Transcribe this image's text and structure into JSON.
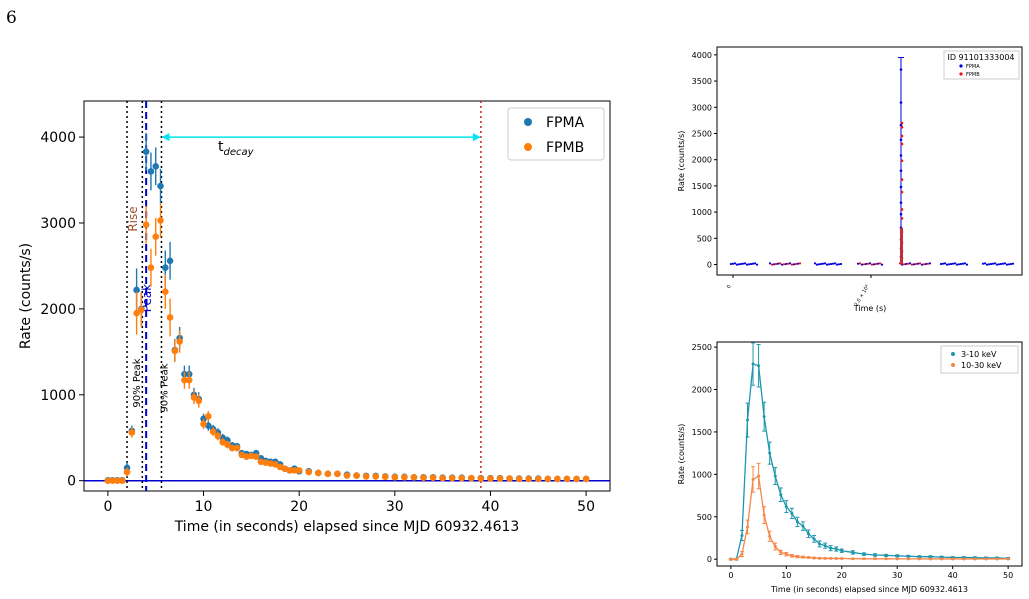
{
  "page": {
    "number": "6"
  },
  "chart_data": [
    {
      "id": "main",
      "type": "scatter",
      "xlabel": "Time (in seconds) elapsed since MJD 60932.4613",
      "ylabel": "Rate (counts/s)",
      "xlim": [
        -2.5,
        52.5
      ],
      "ylim": [
        -120,
        4420
      ],
      "xticks": [
        "0",
        "10",
        "20",
        "30",
        "40",
        "50"
      ],
      "yticks": [
        "0",
        "1000",
        "2000",
        "3000",
        "4000"
      ],
      "grid": false,
      "legend_position": "top-right",
      "series": [
        {
          "name": "FPMA",
          "color": "#1f77b4",
          "x": [
            0,
            0.5,
            1,
            1.5,
            2,
            2.5,
            3,
            3.5,
            4,
            4.5,
            5,
            5.5,
            6,
            6.5,
            7,
            7.5,
            8,
            8.5,
            9,
            9.5,
            10,
            10.5,
            11,
            11.5,
            12,
            12.5,
            13,
            13.5,
            14,
            14.5,
            15,
            15.5,
            16,
            16.5,
            17,
            17.5,
            18,
            18.5,
            19,
            19.5,
            20,
            21,
            22,
            23,
            24,
            25,
            26,
            27,
            28,
            29,
            30,
            31,
            32,
            33,
            34,
            35,
            36,
            37,
            38,
            39,
            40,
            41,
            42,
            43,
            44,
            45,
            46,
            47,
            48,
            49,
            50
          ],
          "y": [
            5,
            5,
            5,
            5,
            150,
            580,
            2220,
            2000,
            3830,
            3600,
            3660,
            3430,
            2480,
            2560,
            1520,
            1660,
            1240,
            1240,
            1000,
            950,
            720,
            640,
            600,
            560,
            500,
            470,
            410,
            400,
            320,
            310,
            300,
            320,
            260,
            230,
            220,
            220,
            190,
            140,
            120,
            140,
            110,
            110,
            90,
            80,
            80,
            70,
            60,
            55,
            55,
            50,
            45,
            45,
            40,
            40,
            40,
            35,
            35,
            35,
            30,
            30,
            30,
            30,
            25,
            25,
            25,
            25,
            20,
            20,
            20,
            20,
            20
          ],
          "err": [
            20,
            20,
            20,
            20,
            60,
            60,
            250,
            200,
            220,
            220,
            220,
            200,
            200,
            220,
            130,
            130,
            100,
            100,
            80,
            80,
            60,
            60,
            50,
            50,
            45,
            45,
            40,
            40,
            35,
            35,
            35,
            35,
            30,
            30,
            30,
            30,
            25,
            25,
            25,
            25,
            20,
            20,
            18,
            18,
            18,
            15,
            15,
            15,
            15,
            15,
            12,
            12,
            12,
            12,
            12,
            10,
            10,
            10,
            10,
            10,
            10,
            10,
            10,
            10,
            10,
            10,
            10,
            10,
            10,
            10,
            10
          ]
        },
        {
          "name": "FPMB",
          "color": "#ff7f0e",
          "x": [
            0,
            0.5,
            1,
            1.5,
            2,
            2.5,
            3,
            3.5,
            4,
            4.5,
            5,
            5.5,
            6,
            6.5,
            7,
            7.5,
            8,
            8.5,
            9,
            9.5,
            10,
            10.5,
            11,
            11.5,
            12,
            12.5,
            13,
            13.5,
            14,
            14.5,
            15,
            15.5,
            16,
            16.5,
            17,
            17.5,
            18,
            18.5,
            19,
            19.5,
            20,
            21,
            22,
            23,
            24,
            25,
            26,
            27,
            28,
            29,
            30,
            31,
            32,
            33,
            34,
            35,
            36,
            37,
            38,
            39,
            40,
            41,
            42,
            43,
            44,
            45,
            46,
            47,
            48,
            49,
            50
          ],
          "y": [
            0,
            0,
            0,
            0,
            100,
            560,
            1950,
            1990,
            2980,
            2480,
            2840,
            3030,
            2200,
            1900,
            1510,
            1620,
            1170,
            1170,
            970,
            930,
            660,
            750,
            570,
            520,
            450,
            420,
            380,
            380,
            300,
            280,
            290,
            280,
            220,
            210,
            200,
            190,
            160,
            140,
            120,
            120,
            120,
            100,
            90,
            80,
            80,
            60,
            60,
            50,
            50,
            45,
            40,
            40,
            40,
            35,
            35,
            30,
            30,
            30,
            30,
            25,
            25,
            25,
            25,
            20,
            20,
            20,
            20,
            20,
            20,
            20,
            20
          ],
          "err": [
            20,
            20,
            20,
            20,
            50,
            60,
            250,
            200,
            220,
            220,
            220,
            200,
            200,
            220,
            130,
            130,
            100,
            100,
            80,
            80,
            60,
            60,
            50,
            50,
            45,
            45,
            40,
            40,
            35,
            35,
            35,
            35,
            30,
            30,
            30,
            30,
            25,
            25,
            25,
            25,
            20,
            20,
            18,
            18,
            18,
            15,
            15,
            15,
            15,
            15,
            12,
            12,
            12,
            12,
            12,
            10,
            10,
            10,
            10,
            10,
            10,
            10,
            10,
            10,
            10,
            10,
            10,
            10,
            10,
            10,
            10
          ]
        }
      ],
      "vlines": [
        {
          "x": 2.0,
          "color": "#000000",
          "style": "dotted",
          "label": "90% Peak"
        },
        {
          "x": 3.6,
          "color": "#000000",
          "style": "dotted",
          "label": ""
        },
        {
          "x": 4.0,
          "color": "#0000cc",
          "style": "dashed",
          "label": "Peak"
        },
        {
          "x": 5.6,
          "color": "#000000",
          "style": "dotted",
          "label": "90% Peak"
        },
        {
          "x": 39.0,
          "color": "#cc2222",
          "style": "dotted",
          "label": ""
        }
      ],
      "hline": {
        "y": 0,
        "color": "#0000cc"
      },
      "rise_label": "Rise",
      "decay_label": "t",
      "decay_subscript": "decay",
      "decay_arrow": [
        5.6,
        39.0
      ],
      "decay_arrow_y": 4000,
      "accent": "#00e5ee"
    },
    {
      "id": "top-right",
      "type": "scatter",
      "xlabel": "Time (s)",
      "ylabel": "Rate (counts/s)",
      "xticks": [
        "0",
        "2.0 × 10⁸"
      ],
      "yticks": [
        "0",
        "500",
        "1000",
        "1500",
        "2000",
        "2500",
        "3000",
        "3500",
        "4000"
      ],
      "ylim": [
        -200,
        4150
      ],
      "legend_title": "ID 91101333004",
      "legend_position": "top-right",
      "series": [
        {
          "name": "FPMA",
          "color": "#0000dd"
        },
        {
          "name": "FPMB",
          "color": "#ee1111"
        }
      ],
      "segment_count": 7,
      "burst_segment": 4,
      "burst_values_fpma": [
        3720,
        3090,
        2660,
        2380,
        2080,
        1790,
        1480,
        1180,
        960,
        700,
        480,
        300,
        150
      ],
      "burst_values_fpmb": [
        2700,
        2620,
        2450,
        2300,
        1980,
        1620,
        1380,
        1050,
        880,
        620,
        420,
        250,
        120
      ]
    },
    {
      "id": "bottom-right",
      "type": "line",
      "xlabel": "Time (in seconds) elapsed since MJD 60932.4613",
      "ylabel": "Rate (counts/s)",
      "xlim": [
        -2.5,
        52.5
      ],
      "ylim": [
        -80,
        2560
      ],
      "xticks": [
        "0",
        "10",
        "20",
        "30",
        "40",
        "50"
      ],
      "yticks": [
        "0",
        "500",
        "1000",
        "1500",
        "2000",
        "2500"
      ],
      "legend_position": "top-right",
      "series": [
        {
          "name": "3-10 keV",
          "color": "#1d97ad",
          "x": [
            0,
            1,
            2,
            3,
            4,
            5,
            6,
            7,
            8,
            9,
            10,
            11,
            12,
            13,
            14,
            15,
            16,
            17,
            18,
            19,
            20,
            22,
            24,
            26,
            28,
            30,
            32,
            34,
            36,
            38,
            40,
            42,
            44,
            46,
            48,
            50
          ],
          "y": [
            0,
            0,
            280,
            1640,
            2300,
            2280,
            1680,
            1250,
            980,
            760,
            620,
            540,
            440,
            390,
            300,
            240,
            180,
            160,
            130,
            120,
            100,
            80,
            60,
            50,
            45,
            40,
            35,
            30,
            30,
            25,
            20,
            20,
            18,
            15,
            15,
            10
          ],
          "err": [
            10,
            10,
            60,
            200,
            250,
            250,
            170,
            130,
            100,
            80,
            70,
            60,
            55,
            50,
            45,
            40,
            35,
            30,
            30,
            25,
            20,
            20,
            15,
            15,
            12,
            12,
            10,
            10,
            10,
            10,
            10,
            10,
            10,
            10,
            10,
            10
          ]
        },
        {
          "name": "10-30 keV",
          "color": "#f5874a",
          "x": [
            0,
            1,
            2,
            3,
            4,
            5,
            6,
            7,
            8,
            9,
            10,
            11,
            12,
            13,
            14,
            15,
            16,
            17,
            18,
            19,
            20,
            22,
            24,
            26,
            28,
            30,
            32,
            34,
            36,
            38,
            40,
            42,
            44,
            46,
            48,
            50
          ],
          "y": [
            0,
            0,
            60,
            380,
            940,
            980,
            520,
            270,
            150,
            80,
            60,
            40,
            30,
            25,
            20,
            15,
            12,
            10,
            10,
            8,
            8,
            6,
            5,
            5,
            5,
            4,
            4,
            4,
            3,
            3,
            3,
            3,
            3,
            3,
            3,
            3
          ],
          "err": [
            8,
            8,
            30,
            80,
            150,
            150,
            100,
            60,
            40,
            25,
            20,
            15,
            12,
            10,
            8,
            8,
            6,
            6,
            5,
            5,
            5,
            4,
            4,
            4,
            4,
            3,
            3,
            3,
            3,
            3,
            3,
            3,
            3,
            3,
            3,
            3
          ]
        }
      ]
    }
  ]
}
